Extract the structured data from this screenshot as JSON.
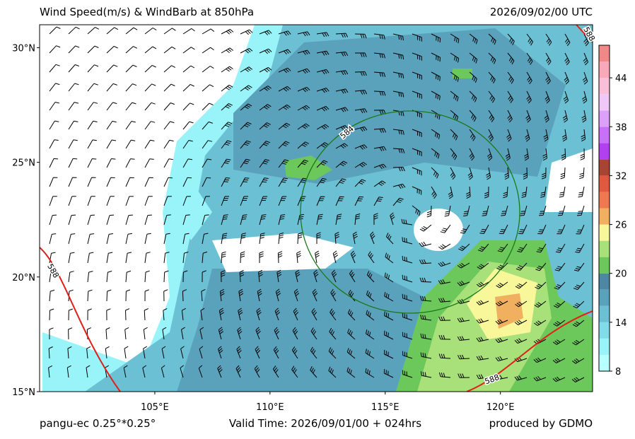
{
  "header": {
    "title": "Wind Speed(m/s) & WindBarb at 850hPa",
    "time": "2026/09/02/00 UTC"
  },
  "map": {
    "xlim": [
      100,
      124
    ],
    "ylim": [
      15,
      31
    ],
    "xticks": [
      {
        "value": 105,
        "label": "105°E"
      },
      {
        "value": 110,
        "label": "110°E"
      },
      {
        "value": 115,
        "label": "115°E"
      },
      {
        "value": 120,
        "label": "120°E"
      }
    ],
    "yticks": [
      {
        "value": 30,
        "label": "30°N"
      },
      {
        "value": 25,
        "label": "25°N"
      },
      {
        "value": 20,
        "label": "20°N"
      },
      {
        "value": 15,
        "label": "15°N"
      }
    ],
    "contour_labels": [
      "584",
      "588",
      "588",
      "588"
    ]
  },
  "colorbar": {
    "levels": [
      8,
      10,
      12,
      14,
      16,
      18,
      20,
      22,
      24,
      26,
      28,
      30,
      32,
      34,
      36,
      38,
      40,
      42,
      44,
      46,
      48
    ],
    "colors": [
      "#b8ffff",
      "#98f4f8",
      "#80dce8",
      "#6cc0d4",
      "#5aa2bc",
      "#4c88a4",
      "#6cc85a",
      "#a8e07a",
      "#f8f89a",
      "#f0b060",
      "#f07850",
      "#e05840",
      "#a84434",
      "#b040f0",
      "#c870f8",
      "#dca0f8",
      "#f0c8f8",
      "#f8c0d8",
      "#f8a8b8",
      "#f08888"
    ],
    "ticks": [
      8,
      14,
      20,
      26,
      32,
      38,
      44
    ]
  },
  "footer": {
    "left": "pangu-ec 0.25°*0.25°",
    "center": "Valid Time: 2026/09/01/00 + 024hrs",
    "right": "produced by GDMO"
  }
}
